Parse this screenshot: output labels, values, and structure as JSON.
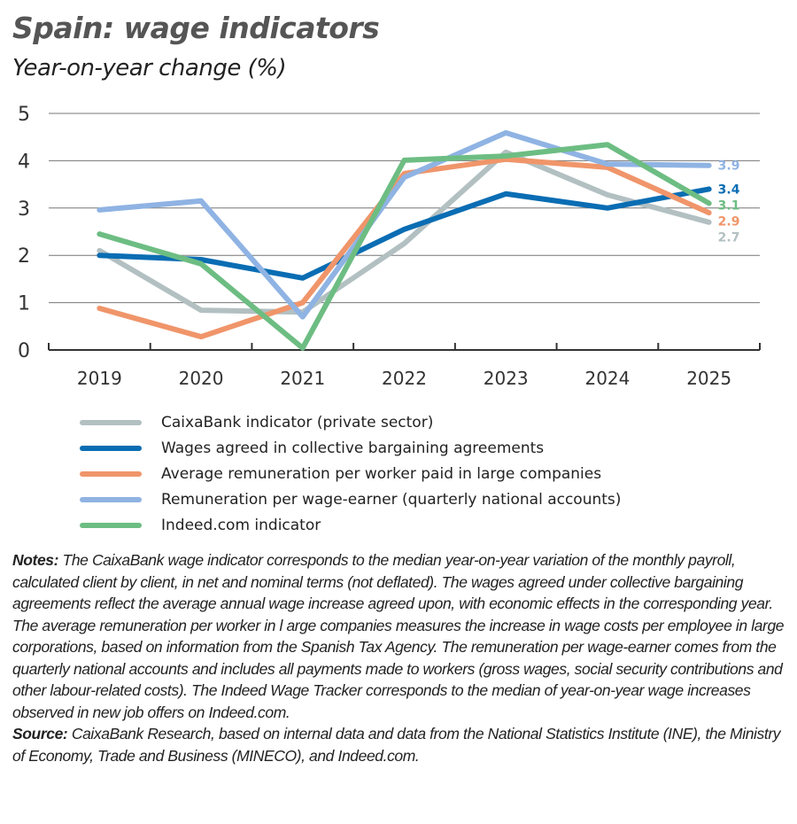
{
  "chart_data": {
    "type": "line",
    "title": "Spain: wage indicators",
    "subtitle": "Year-on-year change (%)",
    "categories": [
      "2019",
      "2020",
      "2021",
      "2022",
      "2023",
      "2024",
      "2025"
    ],
    "ylim": [
      0,
      5
    ],
    "yticks": [
      "0",
      "1",
      "2",
      "3",
      "4",
      "5"
    ],
    "grid": true,
    "legend_position": "bottom",
    "series": [
      {
        "name": "CaixaBank indicator (private sector)",
        "color": "#b3c0c2",
        "values": [
          2.1,
          0.84,
          0.8,
          2.25,
          4.18,
          3.28,
          2.7
        ],
        "end_label": "2.7"
      },
      {
        "name": "Wages agreed in collective bargaining agreements",
        "color": "#0a6db3",
        "values": [
          2.0,
          1.91,
          1.52,
          2.55,
          3.3,
          3.0,
          3.4
        ],
        "end_label": "3.4"
      },
      {
        "name": "Average remuneration per worker paid in large companies",
        "color": "#f0956a",
        "values": [
          0.88,
          0.28,
          1.0,
          3.73,
          4.03,
          3.86,
          2.9
        ],
        "end_label": "2.9"
      },
      {
        "name": "Remuneration per wage-earner (quarterly national accounts)",
        "color": "#8fb3e3",
        "values": [
          2.96,
          3.15,
          0.7,
          3.65,
          4.59,
          3.93,
          3.9
        ],
        "end_label": "3.9"
      },
      {
        "name": "Indeed.com indicator",
        "color": "#6dbd83",
        "values": [
          2.45,
          1.82,
          0.04,
          4.01,
          4.1,
          4.34,
          3.1
        ],
        "end_label": "3.1"
      }
    ]
  },
  "notes": {
    "notes_label": "Notes:",
    "notes_text": "The CaixaBank wage indicator corresponds to the median year-on-year variation of the monthly payroll, calculated client by client, in net and nominal terms (not deflated). The wages agreed under collective bargaining agreements reflect the average annual wage increase agreed upon, with economic effects in the corresponding year. The average remuneration per worker in l arge companies measures the increase in wage costs per employee in large corporations, based on information from the Spanish Tax Agency. The remuneration per wage-earner comes from the quarterly national accounts and includes all payments made to workers (gross wages, social security contributions and other labour-related costs). The Indeed Wage Tracker corresponds to the median of year-on-year wage increases observed in new job offers on Indeed.com.",
    "source_label": "Source:",
    "source_text": "CaixaBank Research, based on internal data and data from the National Statistics Institute (INE), the Ministry of Economy, Trade and Business (MINECO), and Indeed.com."
  }
}
